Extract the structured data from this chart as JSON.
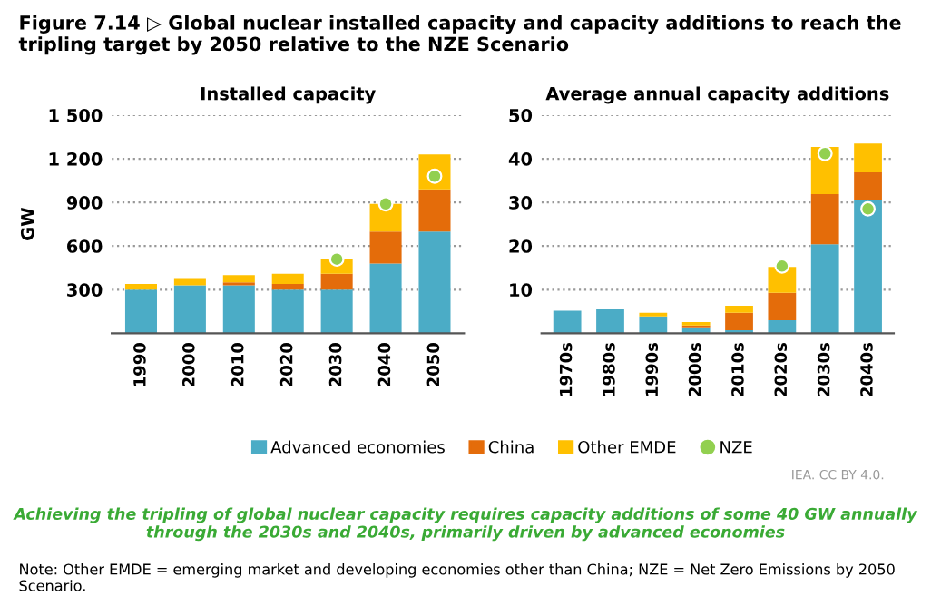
{
  "chart_data": [
    {
      "type": "bar",
      "title": "Installed capacity",
      "ylabel": "GW",
      "stacked": true,
      "categories": [
        "1990",
        "2000",
        "2010",
        "2020",
        "2030",
        "2040",
        "2050"
      ],
      "series": [
        {
          "name": "Advanced economies",
          "color": "#4bacc6",
          "values": [
            300,
            330,
            330,
            300,
            300,
            480,
            700
          ]
        },
        {
          "name": "China",
          "color": "#e46c0a",
          "values": [
            0,
            0,
            20,
            40,
            110,
            220,
            290
          ]
        },
        {
          "name": "Other EMDE",
          "color": "#ffc000",
          "values": [
            40,
            50,
            50,
            70,
            100,
            190,
            240
          ]
        },
        {
          "name": "NZE",
          "type": "scatter",
          "color": "#92d050",
          "marker": "circle",
          "values": [
            null,
            null,
            null,
            null,
            510,
            890,
            1080
          ]
        }
      ],
      "ylim": [
        0,
        1500
      ],
      "yticks": [
        300,
        600,
        900,
        {
          "value": 1200,
          "label": "1 200"
        },
        {
          "value": 1500,
          "label": "1 500"
        }
      ],
      "grid": "y",
      "legend": "bottom",
      "annotations": [
        "Figure 7.14 ▷ Global nuclear installed capacity and capacity additions to reach the tripling target by 2050 relative to the NZE Scenario",
        "Achieving the tripling of global nuclear capacity requires capacity additions of some 40 GW annually through the 2030s and 2040s, primarily driven by advanced economies",
        "Note: Other EMDE = emerging market and developing economies other than China; NZE = Net Zero Emissions by 2050 Scenario."
      ]
    },
    {
      "type": "bar",
      "title": "Average annual capacity additions",
      "stacked": true,
      "categories": [
        "1970s",
        "1980s",
        "1990s",
        "2000s",
        "2010s",
        "2020s",
        "2030s",
        "2040s"
      ],
      "series": [
        {
          "color": "#4bacc6",
          "values": [
            5.2,
            5.5,
            3.9,
            1.2,
            0.7,
            3.0,
            20.4,
            30.5
          ]
        },
        {
          "color": "#e46c0a",
          "values": [
            0,
            0,
            0,
            0.6,
            4.0,
            6.3,
            11.5,
            6.4
          ]
        },
        {
          "color": "#ffc000",
          "values": [
            0,
            0,
            0.8,
            0.8,
            1.6,
            5.9,
            10.8,
            6.6
          ]
        },
        {
          "type": "scatter",
          "color": "#92d050",
          "marker": "circle",
          "values": [
            null,
            null,
            null,
            null,
            null,
            15.4,
            41.2,
            28.5
          ]
        }
      ],
      "ylim": [
        0,
        50
      ],
      "yticks": [
        10,
        20,
        30,
        40,
        50
      ],
      "grid": "y",
      "annotations": [
        "IEA. CC BY 4.0."
      ]
    }
  ]
}
